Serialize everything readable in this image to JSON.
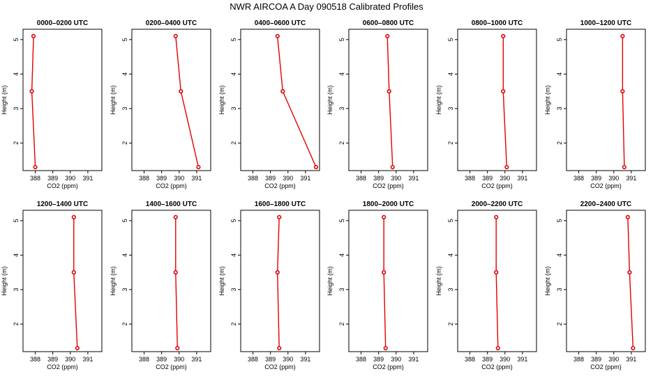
{
  "title": "NWR AIRCOA A  Day 090518  Calibrated Profiles",
  "colors": {
    "series": "#e00000",
    "frame": "#000000",
    "background": "#ffffff"
  },
  "chart_data": {
    "type": "line",
    "grid_layout": "2 rows x 6 columns",
    "xlabel": "CO2 (ppm)",
    "ylabel": "Height (m)",
    "xlim": [
      387.3,
      391.8
    ],
    "ylim": [
      1.2,
      5.3
    ],
    "xticks": [
      "388",
      "389",
      "390",
      "391"
    ],
    "yticks": [
      "2",
      "3",
      "4",
      "5"
    ],
    "heights": [
      5.1,
      3.5,
      1.3
    ],
    "grid": false,
    "panels": [
      {
        "title": "0000–0200 UTC",
        "co2": [
          387.9,
          387.8,
          388.0
        ]
      },
      {
        "title": "0200–0400 UTC",
        "co2": [
          389.8,
          390.1,
          391.1
        ]
      },
      {
        "title": "0400–0600 UTC",
        "co2": [
          389.4,
          389.7,
          391.6
        ]
      },
      {
        "title": "0600–0800 UTC",
        "co2": [
          389.5,
          389.6,
          389.8
        ]
      },
      {
        "title": "0800–1000 UTC",
        "co2": [
          389.9,
          389.9,
          390.1
        ]
      },
      {
        "title": "1000–1200 UTC",
        "co2": [
          390.5,
          390.5,
          390.6
        ]
      },
      {
        "title": "1200–1400 UTC",
        "co2": [
          390.2,
          390.2,
          390.4
        ]
      },
      {
        "title": "1400–1600 UTC",
        "co2": [
          389.8,
          389.8,
          389.9
        ]
      },
      {
        "title": "1600–1800 UTC",
        "co2": [
          389.5,
          389.4,
          389.5
        ]
      },
      {
        "title": "1800–2000 UTC",
        "co2": [
          389.3,
          389.3,
          389.4
        ]
      },
      {
        "title": "2000–2200 UTC",
        "co2": [
          389.5,
          389.5,
          389.6
        ]
      },
      {
        "title": "2200–2400 UTC",
        "co2": [
          390.8,
          390.9,
          391.1
        ]
      }
    ]
  }
}
